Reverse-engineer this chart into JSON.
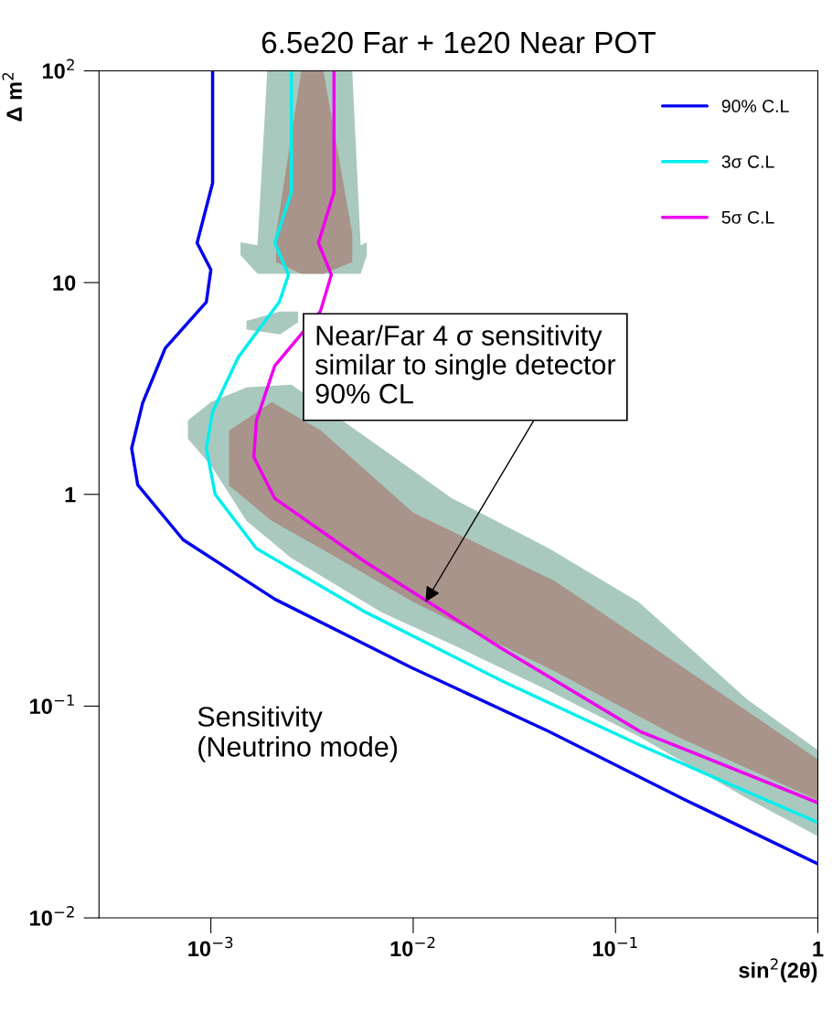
{
  "chart_data": {
    "type": "line",
    "title": "6.5e20 Far + 1e20 Near POT",
    "xlabel": "sin$^{2}$(2θ)",
    "ylabel": "Δ m$^{2}$",
    "log": "xy",
    "xlim": [
      0.00028,
      1
    ],
    "ylim": [
      0.01,
      100
    ],
    "xticks": [
      {
        "value": 0.001,
        "label": "10$^{−3}$"
      },
      {
        "value": 0.01,
        "label": "10$^{−2}$"
      },
      {
        "value": 0.1,
        "label": "10$^{−1}$"
      },
      1
    ],
    "yticks": [
      {
        "value": 0.01,
        "label": "10$^{−2}$"
      },
      {
        "value": 0.1,
        "label": "10$^{−1}$"
      },
      1,
      10,
      {
        "value": 100,
        "label": "10$^{2}$"
      }
    ],
    "grid": false,
    "legend": "top right",
    "series": [
      {
        "type": "area",
        "color": "#a9c9bf",
        "x": [
          0.00077,
          0.001,
          0.0015,
          0.0025,
          0.007,
          0.0155,
          0.047,
          0.13,
          0.45,
          1,
          1,
          0.45,
          0.13,
          0.047,
          0.0155,
          0.007,
          0.0025,
          0.0015,
          0.001,
          0.00077
        ],
        "values": [
          2.23,
          2.73,
          3.2,
          3.3,
          1.65,
          0.96,
          0.555,
          0.31,
          0.107,
          0.062,
          0.0243,
          0.0365,
          0.072,
          0.118,
          0.196,
          0.277,
          0.5,
          0.75,
          1.37,
          1.83
        ]
      },
      {
        "type": "area",
        "color": "#a9c9bf",
        "x": [
          0.0014,
          0.0017,
          0.0019,
          0.005,
          0.0055,
          0.0059,
          0.0059,
          0.0055,
          0.005,
          0.0019,
          0.0017,
          0.0014
        ],
        "values": [
          15.5,
          15,
          100,
          100,
          15,
          15.5,
          13.5,
          11,
          11,
          11,
          11,
          13.5
        ]
      },
      {
        "type": "area",
        "color": "#a9c9bf",
        "x": [
          0.0015,
          0.0022,
          0.0027,
          0.0027,
          0.0022,
          0.0015
        ],
        "values": [
          6.6,
          7.3,
          7.3,
          6.5,
          5.7,
          6.0
        ]
      },
      {
        "type": "area",
        "color": "#a8948a",
        "x": [
          0.00123,
          0.002,
          0.0035,
          0.01,
          0.05,
          0.2,
          1,
          1,
          0.2,
          0.05,
          0.01,
          0.0035,
          0.002,
          0.00123
        ],
        "values": [
          2.0,
          2.73,
          2.0,
          0.82,
          0.39,
          0.16,
          0.056,
          0.036,
          0.072,
          0.146,
          0.31,
          0.555,
          0.75,
          1.1
        ]
      },
      {
        "type": "area",
        "color": "#a8948a",
        "x": [
          0.0021,
          0.0028,
          0.0036,
          0.005,
          0.005,
          0.0036,
          0.0028,
          0.0021
        ],
        "values": [
          17,
          100,
          100,
          17,
          12.5,
          11,
          11,
          12.5
        ]
      },
      {
        "name": "90% C.L",
        "color": "#0000ee",
        "x": [
          0.00102,
          0.00102,
          0.000855,
          0.001,
          0.00095,
          0.000595,
          0.00046,
          0.000406,
          0.000435,
          0.00073,
          0.00207,
          0.0098,
          0.0467,
          0.222,
          1
        ],
        "values": [
          100,
          29.5,
          15.4,
          11.5,
          8.1,
          4.9,
          2.7,
          1.65,
          1.11,
          0.61,
          0.32,
          0.152,
          0.076,
          0.036,
          0.018
        ]
      },
      {
        "name": "3σ C.L",
        "color": "#00eeee",
        "x": [
          0.0025,
          0.0025,
          0.00207,
          0.00242,
          0.00218,
          0.00137,
          0.00102,
          0.00095,
          0.00105,
          0.00168,
          0.00585,
          0.0277,
          0.132,
          1
        ],
        "values": [
          100,
          26.7,
          15.4,
          10.9,
          8.1,
          4.46,
          2.46,
          1.65,
          1.0,
          0.555,
          0.277,
          0.131,
          0.0655,
          0.0282
        ]
      },
      {
        "name": "5σ C.L",
        "color": "#ee00ee",
        "x": [
          0.00406,
          0.00406,
          0.0034,
          0.00394,
          0.00348,
          0.00207,
          0.00168,
          0.00163,
          0.00207,
          0.00585,
          0.0277,
          0.132,
          1
        ],
        "values": [
          100,
          26.7,
          15.4,
          10.9,
          7.33,
          4.05,
          2.23,
          1.5,
          0.957,
          0.477,
          0.186,
          0.076,
          0.035
        ]
      }
    ],
    "annotations": [
      {
        "text": "Near/Far 4 σ sensitivity\nsimilar to single detector\n90% CL",
        "x": 0.0115,
        "y": 0.31
      },
      "Sensitivity\n(Neutrino mode)"
    ]
  }
}
